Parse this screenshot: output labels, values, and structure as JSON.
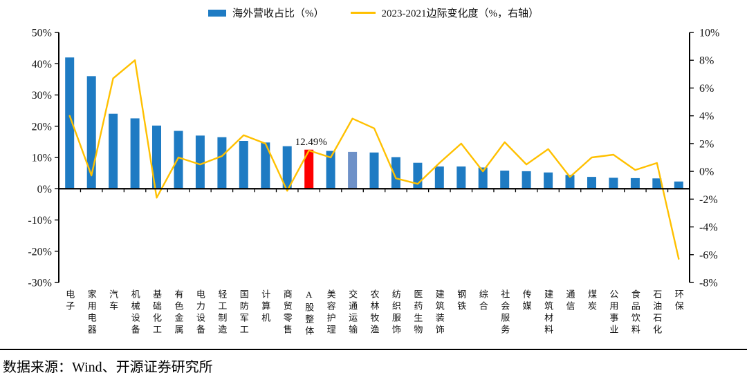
{
  "figure": {
    "legend": {
      "bar_label": "海外营收占比（%）",
      "line_label": "2023-2021边际变化度（%，右轴）"
    },
    "annotation": {
      "text": "12.49%",
      "category": "A股整体"
    },
    "source_text": "数据来源：Wind、开源证券研究所",
    "colors": {
      "bar_blue": "#1E7BC3",
      "bar_red": "#FE0000",
      "bar_lightblue": "#6E91C8",
      "line_yellow": "#FFC000",
      "axis_black": "#000000"
    }
  },
  "chart_data": {
    "type": "bar+line combo",
    "title": "",
    "grid": false,
    "legend_position": "top",
    "categories": [
      "电子",
      "家用电器",
      "汽车",
      "机械设备",
      "基础化工",
      "有色金属",
      "电力设备",
      "轻工制造",
      "国防军工",
      "计算机",
      "商贸零售",
      "A股整体",
      "美容护理",
      "交通运输",
      "农林牧渔",
      "纺织服饰",
      "医药生物",
      "建筑装饰",
      "钢铁",
      "综合",
      "社会服务",
      "传媒",
      "建筑材料",
      "通信",
      "煤炭",
      "公用事业",
      "食品饮料",
      "石油石化",
      "环保"
    ],
    "series": [
      {
        "name": "海外营收占比（%）",
        "type": "bar",
        "axis": "left",
        "values": [
          42,
          36,
          24,
          22.5,
          20.2,
          18.5,
          17,
          16.5,
          15.3,
          14.8,
          13.6,
          12.49,
          12.1,
          11.8,
          11.6,
          10.1,
          8.3,
          7.1,
          7.1,
          6.8,
          5.8,
          5.6,
          5.2,
          4.4,
          3.8,
          3.5,
          3.4,
          3.3,
          2.3
        ]
      },
      {
        "name": "2023-2021边际变化度（%，右轴）",
        "type": "line",
        "axis": "right",
        "values": [
          4.0,
          -0.3,
          6.7,
          8.0,
          -1.9,
          1.0,
          0.5,
          1.1,
          2.6,
          2.0,
          -1.4,
          1.5,
          1.0,
          3.8,
          3.1,
          -0.5,
          -0.9,
          0.6,
          2.0,
          0.0,
          2.1,
          0.5,
          1.6,
          -0.4,
          1.0,
          1.2,
          0.1,
          0.6,
          -6.3
        ]
      }
    ],
    "highlight_bars": {
      "11": "red",
      "13": "lightblue"
    },
    "left_axis": {
      "min": -30,
      "max": 50,
      "step": 10,
      "ticks": [
        "50%",
        "40%",
        "30%",
        "20%",
        "10%",
        "0%",
        "-10%",
        "-20%",
        "-30%"
      ]
    },
    "right_axis": {
      "min": -8,
      "max": 10,
      "step": 2,
      "ticks": [
        "10%",
        "8%",
        "6%",
        "4%",
        "2%",
        "0%",
        "-2%",
        "-4%",
        "-6%",
        "-8%"
      ]
    }
  }
}
